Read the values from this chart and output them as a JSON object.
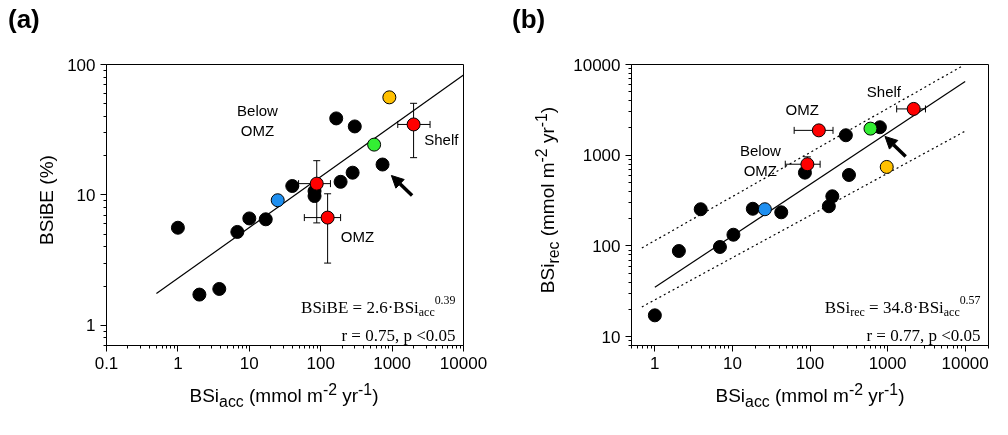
{
  "chart_data": [
    {
      "type": "scatter",
      "title": "(a)",
      "xlabel": "BSi$_{acc}$ (mmol m$^{-2}$ yr$^{-1}$)",
      "ylabel": "BSiBE (%)",
      "log": "xy",
      "xlim": [
        0.1,
        10000
      ],
      "ylim": [
        0.7,
        100
      ],
      "xticks": [
        0.1,
        1,
        10,
        100,
        1000,
        10000
      ],
      "yticks": [
        1,
        10,
        100
      ],
      "grid": false,
      "marker": "circle",
      "annotations": [
        "BSiBE = 2.6·BSi$_{acc}$$^{0.39}$",
        "r = 0.75, p <0.05",
        "Below\nOMZ",
        "OMZ",
        "Shelf"
      ],
      "series": [
        {
          "type": "line",
          "color": "#000000",
          "x": [
            0.5,
            10000
          ],
          "values": [
            1.75,
            83
          ],
          "marker": "none"
        },
        {
          "color": "#000000",
          "x": [
            1,
            2,
            3.8,
            6.8,
            10,
            17,
            40,
            82,
            82,
            190,
            280,
            165,
            300,
            735
          ],
          "values": [
            5.6,
            1.72,
            1.9,
            5.2,
            6.6,
            6.5,
            11.7,
            9.8,
            10.7,
            12.6,
            14.8,
            38.6,
            33.5,
            17.1
          ]
        },
        {
          "color": "#1e8ff0",
          "x": [
            25
          ],
          "values": [
            9.1
          ]
        },
        {
          "color": "#33ee33",
          "x": [
            560
          ],
          "values": [
            24.3
          ]
        },
        {
          "color": "#ffc000",
          "x": [
            915
          ],
          "values": [
            56
          ]
        },
        {
          "color": "#ff0000",
          "x": [
            88,
            125,
            2000
          ],
          "values": [
            12.2,
            6.7,
            34.7
          ],
          "errors": [
            [
              6.1,
              18.3
            ],
            [
              3.0,
              10.2
            ],
            [
              19.3,
              50.4
            ]
          ],
          "xerrors": [
            [
              49,
              137
            ],
            [
              59,
              190
            ],
            [
              1200,
              3400
            ]
          ]
        }
      ]
    },
    {
      "type": "scatter",
      "title": "(b)",
      "xlabel": "BSi$_{acc}$ (mmol m$^{-2}$ yr$^{-1}$)",
      "ylabel": "BSi$_{rec}$ (mmol m$^{-2}$ yr$^{-1}$)",
      "log": "xy",
      "xlim": [
        0.5,
        20000
      ],
      "ylim": [
        8,
        10000
      ],
      "xticks": [
        1,
        10,
        100,
        1000,
        10000
      ],
      "yticks": [
        10,
        100,
        1000,
        10000
      ],
      "grid": false,
      "marker": "circle",
      "annotations": [
        "BSi$_{rec}$ = 34.8·BSi$_{acc}$$^{0.57}$",
        "r = 0.77, p <0.05",
        "Below\nOMZ",
        "OMZ",
        "Shelf"
      ],
      "series": [
        {
          "type": "line",
          "color": "#000000",
          "x": [
            1,
            10000
          ],
          "values": [
            35,
            6500
          ],
          "marker": "none"
        },
        {
          "type": "line",
          "color": "#000000",
          "x": [
            0.68,
            9200
          ],
          "values": [
            95,
            9630
          ],
          "marker": "none",
          "line_style": "dotted"
        },
        {
          "type": "line",
          "color": "#000000",
          "x": [
            0.68,
            10100
          ],
          "values": [
            21.3,
            1850
          ],
          "marker": "none",
          "line_style": "dotted"
        },
        {
          "color": "#000000",
          "x": [
            1,
            2.04,
            3.9,
            6.9,
            10.3,
            18.3,
            42.6,
            86,
            290,
            175,
            194,
            318,
            796
          ],
          "values": [
            17.2,
            88,
            254,
            97.5,
            133,
            257,
            235,
            643,
            1660,
            274,
            353,
            606,
            2035
          ]
        },
        {
          "color": "#1e8ff0",
          "x": [
            26.2
          ],
          "values": [
            254
          ]
        },
        {
          "color": "#33ee33",
          "x": [
            602
          ],
          "values": [
            1965
          ]
        },
        {
          "color": "#ffc000",
          "x": [
            975
          ],
          "values": [
            743
          ]
        },
        {
          "color": "#ff0000",
          "x": [
            92.5,
            130,
            2170
          ],
          "values": [
            796,
            1880,
            3240
          ],
          "errors": [
            [
              640,
              960
            ],
            null,
            null
          ],
          "xerrors": [
            [
              48,
              135
            ],
            [
              62.5,
              198
            ],
            [
              1310,
              3080
            ]
          ]
        }
      ]
    }
  ]
}
